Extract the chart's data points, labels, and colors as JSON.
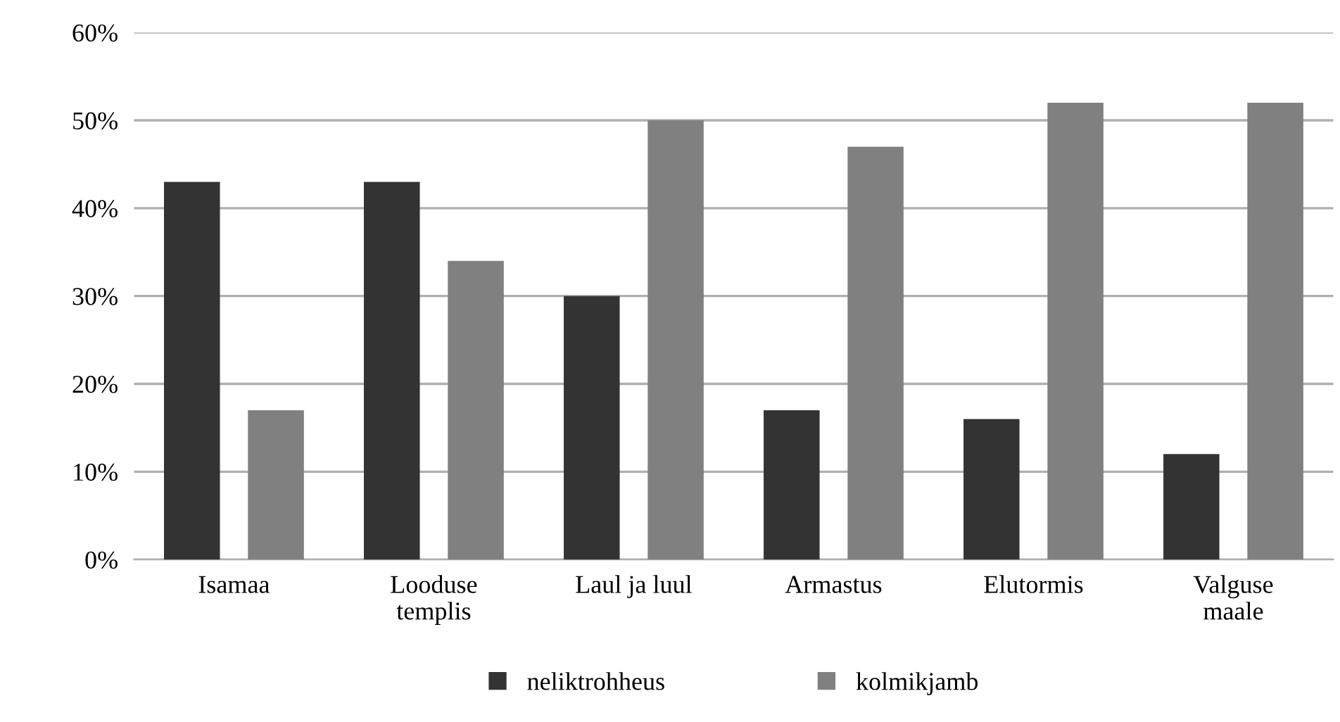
{
  "chart_data": {
    "type": "bar",
    "categories": [
      "Isamaa",
      "Looduse\ntemplis",
      "Laul ja luul",
      "Armastus",
      "Elutormis",
      "Valguse\nmaale"
    ],
    "series": [
      {
        "name": "neliktrohheus",
        "color": "#333333",
        "values": [
          43,
          43,
          30,
          17,
          16,
          12
        ]
      },
      {
        "name": "kolmikjamb",
        "color": "#808080",
        "values": [
          17,
          34,
          50,
          47,
          52,
          52
        ]
      }
    ],
    "ylim": [
      0,
      60
    ],
    "yticks": [
      {
        "value": 0,
        "label": "0%"
      },
      {
        "value": 10,
        "label": "10%"
      },
      {
        "value": 20,
        "label": "20%"
      },
      {
        "value": 30,
        "label": "30%"
      },
      {
        "value": 40,
        "label": "40%"
      },
      {
        "value": 50,
        "label": "50%"
      },
      {
        "value": 60,
        "label": "60%"
      }
    ],
    "grid": "y",
    "legend": "bottom"
  }
}
